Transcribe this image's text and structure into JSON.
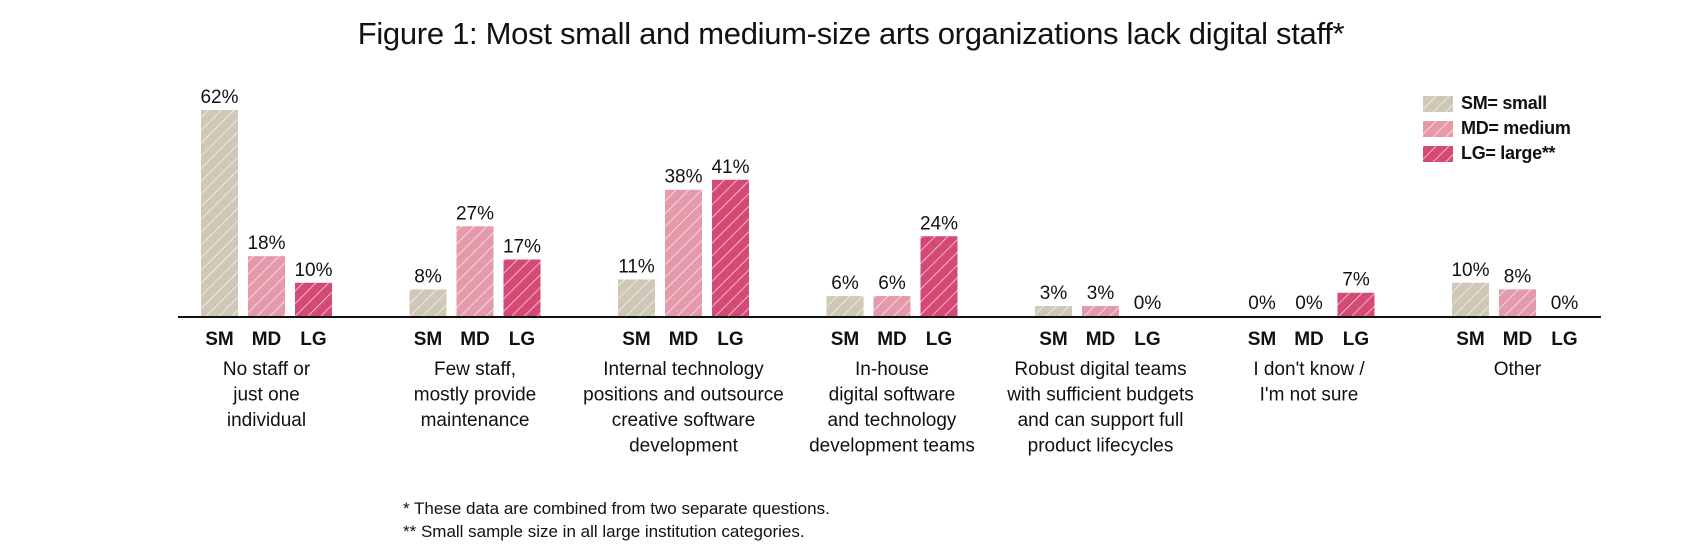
{
  "chart_data": {
    "type": "bar",
    "title": "Figure 1: Most small and medium-size arts organizations lack digital staff*",
    "series_codes": [
      "SM",
      "MD",
      "LG"
    ],
    "legend": [
      {
        "code": "SM",
        "label": "SM= small",
        "color": "#cfc8b7"
      },
      {
        "code": "MD",
        "label": "MD= medium",
        "color": "#e49aab"
      },
      {
        "code": "LG",
        "label": "LG= large**",
        "color": "#d44a74"
      }
    ],
    "ylim": [
      0,
      62
    ],
    "groups": [
      {
        "category": [
          "No staff or",
          "just one",
          "individual"
        ],
        "values": [
          62,
          18,
          10
        ],
        "labels": [
          "62%",
          "18%",
          "10%"
        ]
      },
      {
        "category": [
          "Few staff,",
          "mostly provide",
          "maintenance"
        ],
        "values": [
          8,
          27,
          17
        ],
        "labels": [
          "8%",
          "27%",
          "17%"
        ]
      },
      {
        "category": [
          "Internal technology",
          "positions and outsource",
          "creative software",
          "development"
        ],
        "values": [
          11,
          38,
          41
        ],
        "labels": [
          "11%",
          "38%",
          "41%"
        ]
      },
      {
        "category": [
          "In-house",
          "digital software",
          "and technology",
          "development teams"
        ],
        "values": [
          6,
          6,
          24
        ],
        "labels": [
          "6%",
          "6%",
          "24%"
        ]
      },
      {
        "category": [
          "Robust digital teams",
          "with sufficient budgets",
          "and can support full",
          "product lifecycles"
        ],
        "values": [
          3,
          3,
          0
        ],
        "labels": [
          "3%",
          "3%",
          "0%"
        ]
      },
      {
        "category": [
          "I don't know /",
          "I'm not sure"
        ],
        "values": [
          0,
          0,
          7
        ],
        "labels": [
          "0%",
          "0%",
          "7%"
        ]
      },
      {
        "category": [
          "Other"
        ],
        "values": [
          10,
          8,
          0
        ],
        "labels": [
          "10%",
          "8%",
          "0%"
        ]
      }
    ],
    "footnotes": [
      "* These data are combined from two separate questions.",
      "** Small sample size in all large institution categories."
    ]
  }
}
